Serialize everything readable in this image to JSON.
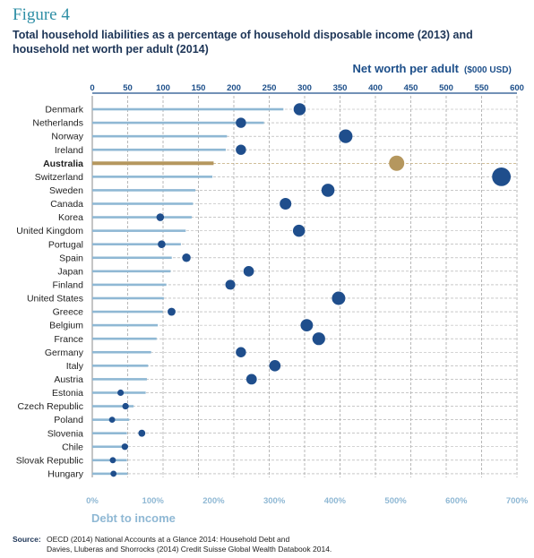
{
  "figure_label": "Figure 4",
  "title": "Total household liabilities as a percentage of household disposable income (2013) and household net worth per adult (2014)",
  "source": {
    "label": "Source:",
    "line1": "OECD (2014) National Accounts at a Glance 2014: Household Debt and",
    "line2": "Davies, Lluberas and Shorrocks (2014) Credit Suisse Global Wealth Databook 2014."
  },
  "colors": {
    "bar": "#8fb8d4",
    "dot": "#1f4e8c",
    "highlight": "#b5975e",
    "axis_top": "#1d4f8a",
    "axis_bottom": "#8fb8d4"
  },
  "chart_data": {
    "type": "bar",
    "categories": [
      "Denmark",
      "Netherlands",
      "Norway",
      "Ireland",
      "Australia",
      "Switzerland",
      "Sweden",
      "Canada",
      "Korea",
      "United Kingdom",
      "Portugal",
      "Spain",
      "Japan",
      "Finland",
      "United States",
      "Greece",
      "Belgium",
      "France",
      "Germany",
      "Italy",
      "Austria",
      "Estonia",
      "Czech Republic",
      "Poland",
      "Slovenia",
      "Chile",
      "Slovak Republic",
      "Hungary"
    ],
    "highlight": "Australia",
    "series": [
      {
        "name": "Debt to income",
        "type": "bar",
        "axis": "bottom",
        "values": [
          315,
          283,
          222,
          220,
          200,
          198,
          170,
          166,
          164,
          154,
          146,
          131,
          129,
          122,
          118,
          116,
          108,
          106,
          97,
          92,
          90,
          88,
          68,
          61,
          57,
          57,
          57,
          58
        ]
      },
      {
        "name": "Net worth per adult",
        "type": "scatter",
        "axis": "top",
        "values": [
          293,
          210,
          358,
          210,
          430,
          578,
          333,
          273,
          96,
          292,
          98,
          133,
          221,
          195,
          348,
          112,
          303,
          320,
          210,
          258,
          225,
          40,
          47,
          28,
          70,
          46,
          29,
          30
        ]
      }
    ],
    "x_bottom": {
      "label": "Debt to income",
      "ticks": [
        "0%",
        "100%",
        "200%",
        "300%",
        "400%",
        "500%",
        "600%",
        "700%"
      ],
      "lim": [
        0,
        700
      ]
    },
    "x_top": {
      "label": "Net worth per adult",
      "unit": "($000 USD)",
      "ticks": [
        "0",
        "50",
        "100",
        "150",
        "200",
        "250",
        "300",
        "350",
        "400",
        "450",
        "500",
        "550",
        "600"
      ],
      "lim": [
        0,
        600
      ]
    },
    "grid": "vertical dashed"
  }
}
